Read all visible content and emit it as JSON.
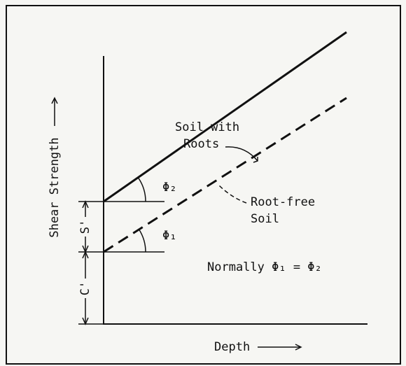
{
  "diagram": {
    "y_axis_label": "Shear Strength",
    "x_axis_label": "Depth",
    "upper_line_label": [
      "Soil with",
      "Roots"
    ],
    "lower_line_label": [
      "Root-free",
      "Soil"
    ],
    "upper_angle": "Φ₂",
    "lower_angle": "Φ₁",
    "root_cohesion": "S'",
    "soil_cohesion": "C'",
    "note": "Normally Φ₁ = Φ₂"
  }
}
